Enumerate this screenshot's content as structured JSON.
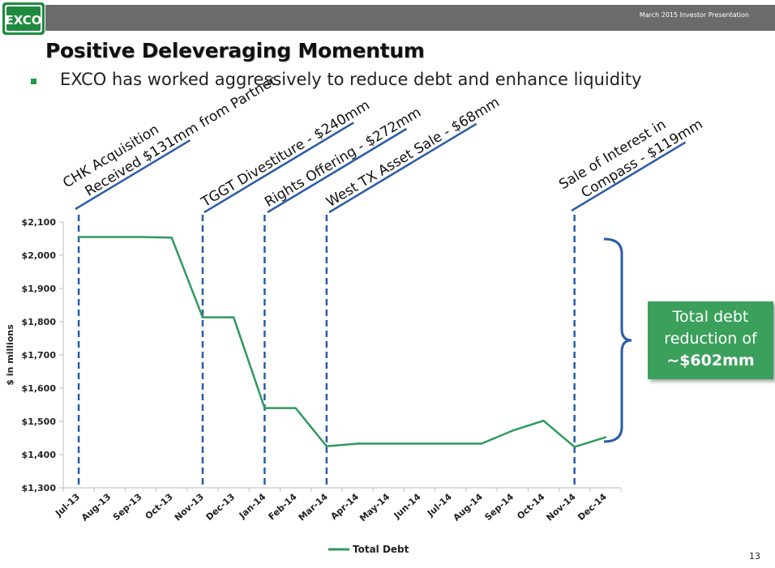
{
  "header": {
    "logo_text": "EXCO",
    "presentation_label": "March 2015 Investor Presentation"
  },
  "slide": {
    "title": "Positive Deleveraging Momentum",
    "bullet": "EXCO has worked aggressively to reduce debt and enhance liquidity",
    "page_number": "13"
  },
  "callout": {
    "line1": "Total debt",
    "line2": "reduction of",
    "line3": "~$602mm"
  },
  "colors": {
    "line": "#2e9a5c",
    "event_lines": "#2a5ca8",
    "brace": "#2a5ca8",
    "callout_bg": "#3aa05b",
    "accent_green": "#1f9b4a"
  },
  "chart_data": {
    "type": "line",
    "title": "",
    "xlabel": "",
    "ylabel": "$ in millions",
    "categories": [
      "Jul-13",
      "Aug-13",
      "Sep-13",
      "Oct-13",
      "Nov-13",
      "Dec-13",
      "Jan-14",
      "Feb-14",
      "Mar-14",
      "Apr-14",
      "May-14",
      "Jun-14",
      "Jul-14",
      "Aug-14",
      "Sep-14",
      "Oct-14",
      "Nov-14",
      "Dec-14"
    ],
    "ylim": [
      1300,
      2100
    ],
    "yticks": [
      1300,
      1400,
      1500,
      1600,
      1700,
      1800,
      1900,
      2000,
      2100
    ],
    "ytick_labels": [
      "$1,300",
      "$1,400",
      "$1,500",
      "$1,600",
      "$1,700",
      "$1,800",
      "$1,900",
      "$2,000",
      "$2,100"
    ],
    "series": [
      {
        "name": "Total Debt",
        "values": [
          2055,
          2055,
          2055,
          2053,
          1813,
          1813,
          1540,
          1540,
          1425,
          1433,
          1433,
          1433,
          1433,
          1433,
          1472,
          1502,
          1423,
          1452
        ]
      }
    ],
    "legend": {
      "position": "bottom",
      "label": "Total Debt"
    },
    "events": [
      {
        "index": 0,
        "lines": [
          "CHK Acquisition",
          "Received $131mm from Partner"
        ]
      },
      {
        "index": 4,
        "lines": [
          "TGGT Divestiture - $240mm"
        ]
      },
      {
        "index": 6,
        "lines": [
          "Rights Offering - $272mm"
        ]
      },
      {
        "index": 8,
        "lines": [
          "West TX Asset Sale - $68mm"
        ]
      },
      {
        "index": 16,
        "lines": [
          "Sale of Interest in",
          "Compass - $119mm"
        ]
      }
    ]
  }
}
